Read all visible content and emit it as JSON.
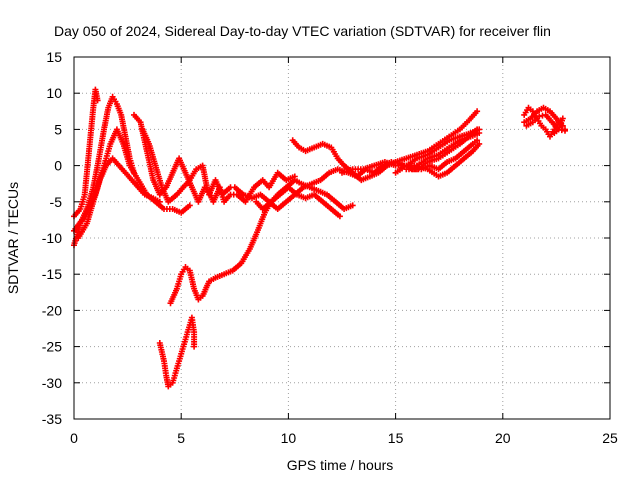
{
  "chart_data": {
    "type": "scatter",
    "title": "Day 050 of 2024, Sidereal Day-to-day VTEC variation (SDTVAR) for receiver flin",
    "xlabel": "GPS time / hours",
    "ylabel": "SDTVAR / TECUs",
    "xlim": [
      0,
      25
    ],
    "ylim": [
      -35,
      15
    ],
    "xticks": [
      0,
      5,
      10,
      15,
      20,
      25
    ],
    "yticks": [
      -35,
      -30,
      -25,
      -20,
      -15,
      -10,
      -5,
      0,
      5,
      10,
      15
    ],
    "grid": true,
    "marker": "+",
    "color": "#ff0000",
    "series": [
      {
        "points": [
          [
            0.0,
            -7
          ],
          [
            0.3,
            -6
          ],
          [
            0.5,
            -4
          ],
          [
            0.7,
            2
          ],
          [
            0.9,
            8
          ],
          [
            1.0,
            10.5
          ],
          [
            1.1,
            9
          ]
        ]
      },
      {
        "points": [
          [
            0.0,
            -11
          ],
          [
            0.3,
            -8
          ],
          [
            0.6,
            -6
          ],
          [
            0.9,
            -3
          ],
          [
            1.1,
            0
          ],
          [
            1.4,
            5
          ],
          [
            1.6,
            8
          ],
          [
            1.8,
            9.5
          ],
          [
            2.0,
            8.5
          ],
          [
            2.2,
            7
          ],
          [
            2.4,
            4
          ],
          [
            2.6,
            1
          ],
          [
            2.8,
            -1
          ]
        ]
      },
      {
        "points": [
          [
            0.0,
            -9
          ],
          [
            0.5,
            -7
          ],
          [
            1.0,
            -4
          ],
          [
            1.3,
            -1
          ],
          [
            1.5,
            1
          ],
          [
            1.7,
            3
          ],
          [
            2.0,
            5
          ],
          [
            2.3,
            3
          ],
          [
            2.6,
            0
          ],
          [
            3.0,
            -2
          ],
          [
            3.4,
            -4
          ],
          [
            3.8,
            -5
          ],
          [
            4.2,
            -6
          ],
          [
            4.6,
            -6
          ],
          [
            5.0,
            -6.5
          ],
          [
            5.4,
            -5.5
          ]
        ]
      },
      {
        "points": [
          [
            0.2,
            -10
          ],
          [
            0.6,
            -8
          ],
          [
            0.9,
            -5
          ],
          [
            1.2,
            -2
          ],
          [
            1.5,
            0
          ],
          [
            1.8,
            1
          ],
          [
            2.1,
            0
          ],
          [
            2.4,
            -1
          ],
          [
            2.7,
            -2
          ],
          [
            3.0,
            -3
          ],
          [
            3.3,
            -4
          ],
          [
            3.7,
            -4.5
          ],
          [
            4.0,
            -5
          ]
        ]
      },
      {
        "points": [
          [
            2.8,
            7
          ],
          [
            3.1,
            6
          ],
          [
            3.4,
            2
          ],
          [
            3.7,
            -2
          ],
          [
            4.0,
            -4
          ],
          [
            4.3,
            -3
          ],
          [
            4.6,
            -1
          ],
          [
            4.9,
            1
          ],
          [
            5.2,
            -1
          ],
          [
            5.5,
            -3
          ],
          [
            5.8,
            -5
          ],
          [
            6.1,
            -3
          ],
          [
            6.3,
            -4
          ],
          [
            6.6,
            -2
          ],
          [
            6.9,
            -4
          ],
          [
            7.3,
            -3
          ]
        ]
      },
      {
        "points": [
          [
            3.2,
            5
          ],
          [
            3.5,
            3
          ],
          [
            3.8,
            0
          ],
          [
            4.1,
            -3
          ],
          [
            4.4,
            -5
          ],
          [
            4.8,
            -4
          ],
          [
            5.1,
            -3
          ],
          [
            5.4,
            -2
          ],
          [
            5.7,
            -0.5
          ],
          [
            6.0,
            0
          ],
          [
            6.2,
            -3
          ],
          [
            6.5,
            -5
          ],
          [
            6.8,
            -3
          ],
          [
            7.0,
            -5
          ],
          [
            7.3,
            -4
          ],
          [
            7.6,
            -4
          ],
          [
            8.0,
            -5
          ],
          [
            8.4,
            -3
          ],
          [
            8.8,
            -2
          ],
          [
            9.1,
            -3
          ],
          [
            9.5,
            -1
          ],
          [
            9.9,
            -2
          ],
          [
            10.3,
            -1.5
          ]
        ]
      },
      {
        "points": [
          [
            4.0,
            -24.5
          ],
          [
            4.2,
            -27
          ],
          [
            4.3,
            -29
          ],
          [
            4.4,
            -30.5
          ],
          [
            4.6,
            -30
          ],
          [
            4.8,
            -28
          ],
          [
            5.0,
            -26
          ],
          [
            5.2,
            -24
          ],
          [
            5.4,
            -22
          ],
          [
            5.5,
            -21
          ],
          [
            5.6,
            -23
          ],
          [
            5.6,
            -25
          ]
        ]
      },
      {
        "points": [
          [
            4.5,
            -19
          ],
          [
            4.8,
            -17
          ],
          [
            5.0,
            -15
          ],
          [
            5.2,
            -14
          ],
          [
            5.4,
            -14.5
          ],
          [
            5.6,
            -17
          ],
          [
            5.8,
            -18.5
          ],
          [
            6.0,
            -18
          ],
          [
            6.3,
            -16
          ],
          [
            6.6,
            -15.5
          ],
          [
            7.0,
            -15
          ],
          [
            7.4,
            -14.5
          ],
          [
            7.8,
            -13.5
          ],
          [
            8.2,
            -11.5
          ],
          [
            8.5,
            -9.5
          ],
          [
            8.7,
            -8
          ],
          [
            8.9,
            -6.5
          ],
          [
            9.2,
            -5
          ],
          [
            9.5,
            -4
          ],
          [
            9.9,
            -3
          ],
          [
            10.3,
            -2
          ],
          [
            10.6,
            -2.5
          ],
          [
            11.0,
            -3
          ],
          [
            11.4,
            -3.5
          ],
          [
            11.8,
            -4
          ],
          [
            12.2,
            -5
          ],
          [
            12.6,
            -6
          ],
          [
            13.0,
            -5.5
          ]
        ]
      },
      {
        "points": [
          [
            8.5,
            -5
          ],
          [
            8.8,
            -6
          ],
          [
            9.2,
            -5
          ],
          [
            9.6,
            -4
          ],
          [
            10.0,
            -3
          ],
          [
            10.4,
            -4
          ],
          [
            10.8,
            -4.5
          ],
          [
            11.2,
            -4
          ],
          [
            11.6,
            -5
          ],
          [
            12.0,
            -6
          ],
          [
            12.4,
            -7
          ]
        ]
      },
      {
        "points": [
          [
            7.5,
            -3
          ],
          [
            7.9,
            -4
          ],
          [
            8.3,
            -4.5
          ],
          [
            8.7,
            -4
          ],
          [
            9.1,
            -5
          ],
          [
            9.5,
            -6
          ],
          [
            9.9,
            -5
          ],
          [
            10.3,
            -4
          ],
          [
            10.7,
            -3
          ],
          [
            11.1,
            -2.5
          ],
          [
            11.5,
            -2
          ],
          [
            11.9,
            -1
          ],
          [
            12.3,
            -0.5
          ],
          [
            12.8,
            -1
          ],
          [
            13.2,
            -1.5
          ],
          [
            13.6,
            -0.5
          ],
          [
            14.0,
            -1
          ],
          [
            14.4,
            0
          ],
          [
            14.8,
            0.5
          ]
        ]
      },
      {
        "points": [
          [
            10.2,
            3.5
          ],
          [
            10.5,
            2.5
          ],
          [
            10.8,
            2
          ],
          [
            11.2,
            2.5
          ],
          [
            11.6,
            3
          ],
          [
            12.0,
            2.5
          ],
          [
            12.3,
            1
          ],
          [
            12.6,
            0
          ],
          [
            13.0,
            -1
          ],
          [
            13.4,
            -2
          ],
          [
            13.8,
            -1.5
          ],
          [
            14.2,
            -1
          ],
          [
            14.6,
            0
          ],
          [
            15.0,
            0.5
          ],
          [
            15.4,
            0
          ],
          [
            15.8,
            -0.5
          ],
          [
            16.2,
            -0.5
          ],
          [
            16.6,
            0
          ],
          [
            17.0,
            -0.5
          ],
          [
            17.4,
            0.5
          ],
          [
            17.8,
            1
          ],
          [
            18.2,
            2
          ],
          [
            18.6,
            3
          ],
          [
            18.8,
            3.5
          ]
        ]
      },
      {
        "points": [
          [
            12.5,
            -1
          ],
          [
            13.0,
            -0.5
          ],
          [
            13.5,
            -0.5
          ],
          [
            14.0,
            0
          ],
          [
            14.5,
            0.5
          ],
          [
            15.0,
            0
          ],
          [
            15.5,
            0
          ],
          [
            16.0,
            0
          ],
          [
            16.5,
            -0.5
          ],
          [
            17.0,
            -1.5
          ],
          [
            17.4,
            -1
          ],
          [
            17.8,
            0
          ],
          [
            18.2,
            1
          ],
          [
            18.6,
            2
          ],
          [
            18.9,
            3
          ]
        ]
      },
      {
        "points": [
          [
            14.0,
            -1
          ],
          [
            14.5,
            0
          ],
          [
            15.0,
            0.5
          ],
          [
            15.5,
            1
          ],
          [
            16.0,
            1.5
          ],
          [
            16.5,
            2
          ],
          [
            17.0,
            3
          ],
          [
            17.5,
            4
          ],
          [
            18.0,
            5
          ],
          [
            18.5,
            6.5
          ],
          [
            18.8,
            7.5
          ]
        ]
      },
      {
        "points": [
          [
            15.0,
            -1
          ],
          [
            15.5,
            0
          ],
          [
            16.0,
            1
          ],
          [
            16.5,
            1.5
          ],
          [
            17.0,
            2.5
          ],
          [
            17.5,
            3.5
          ],
          [
            18.0,
            4
          ],
          [
            18.5,
            4.5
          ],
          [
            18.9,
            5
          ]
        ]
      },
      {
        "points": [
          [
            16.0,
            0
          ],
          [
            16.5,
            1
          ],
          [
            17.0,
            1.5
          ],
          [
            17.5,
            2.5
          ],
          [
            18.0,
            3.5
          ],
          [
            18.5,
            4
          ],
          [
            18.9,
            4.5
          ]
        ]
      },
      {
        "points": [
          [
            15.5,
            -0.5
          ],
          [
            16.0,
            -0.5
          ],
          [
            16.5,
            0.5
          ],
          [
            17.0,
            1
          ],
          [
            17.5,
            2
          ],
          [
            18.0,
            3
          ],
          [
            18.4,
            4
          ],
          [
            18.8,
            5
          ]
        ]
      },
      {
        "points": [
          [
            21.0,
            7
          ],
          [
            21.2,
            8
          ],
          [
            21.4,
            7.5
          ],
          [
            21.6,
            6.5
          ],
          [
            21.8,
            5.5
          ],
          [
            22.0,
            5
          ],
          [
            22.2,
            4
          ],
          [
            22.4,
            5
          ],
          [
            22.6,
            6
          ],
          [
            22.8,
            6.5
          ],
          [
            22.6,
            5
          ],
          [
            22.4,
            4.5
          ]
        ]
      },
      {
        "points": [
          [
            21.0,
            6
          ],
          [
            21.3,
            6.5
          ],
          [
            21.6,
            7.5
          ],
          [
            21.9,
            8
          ],
          [
            22.2,
            7.5
          ],
          [
            22.5,
            6.5
          ],
          [
            22.8,
            5.5
          ],
          [
            22.9,
            5
          ]
        ]
      },
      {
        "points": [
          [
            21.1,
            5.5
          ],
          [
            21.4,
            6
          ],
          [
            21.7,
            6.8
          ],
          [
            22.0,
            7
          ],
          [
            22.3,
            6
          ],
          [
            22.6,
            5
          ],
          [
            22.9,
            4.8
          ]
        ]
      }
    ]
  }
}
